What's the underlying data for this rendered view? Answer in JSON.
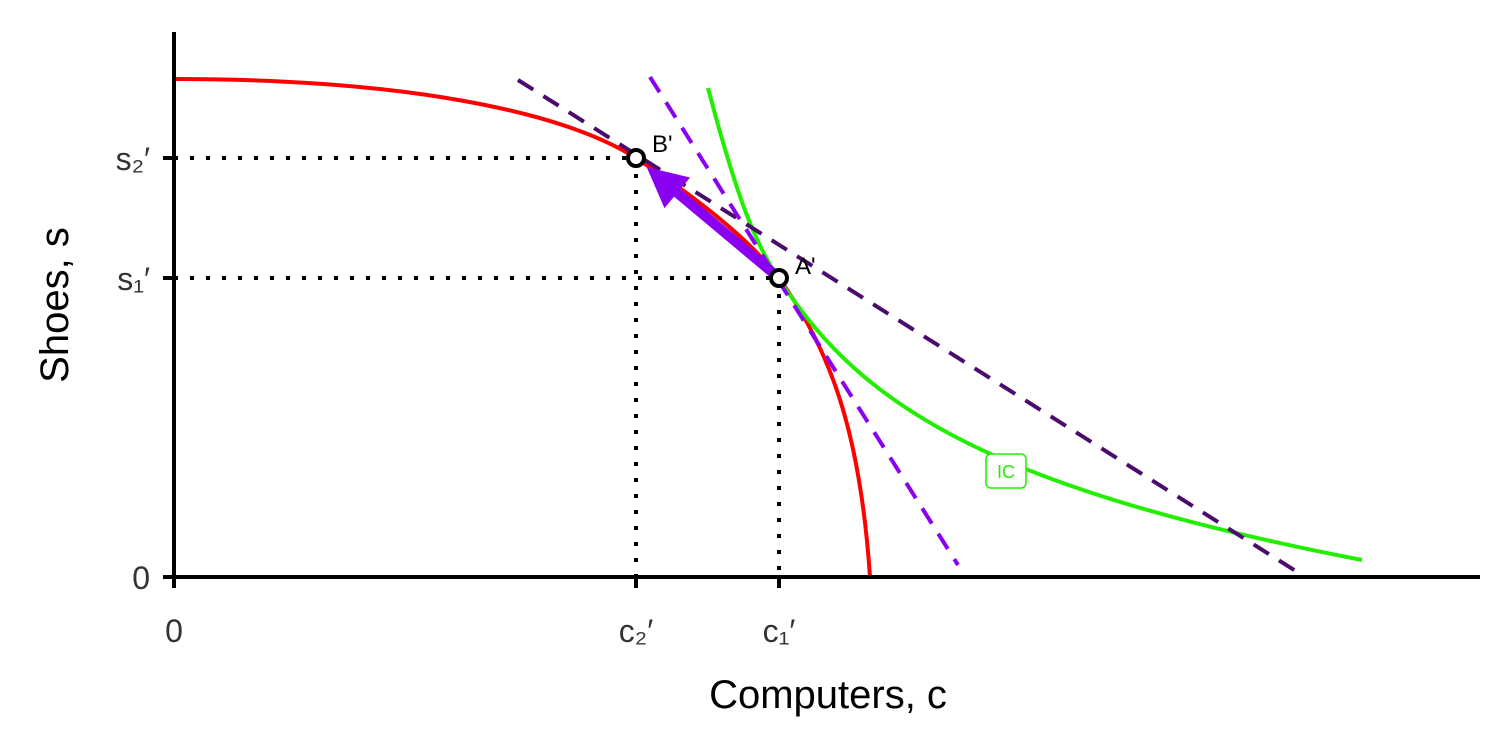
{
  "axes": {
    "x_title": "Computers, c",
    "y_title": "Shoes, s"
  },
  "x_ticks": [
    "0",
    "c₂′",
    "c₁′"
  ],
  "y_ticks": [
    "0",
    "s₁′",
    "s₂′"
  ],
  "points": [
    {
      "label": "B'"
    },
    {
      "label": "A'"
    }
  ],
  "curve_label": "IC"
}
